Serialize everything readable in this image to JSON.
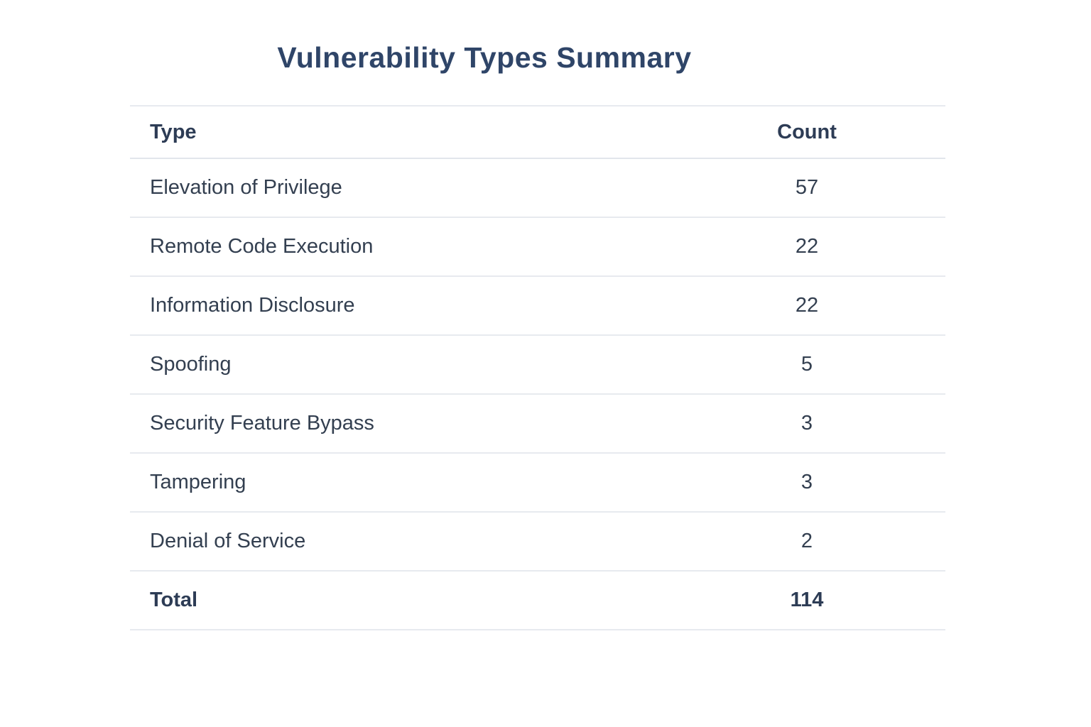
{
  "title": "Vulnerability Types Summary",
  "table": {
    "headers": {
      "type": "Type",
      "count": "Count"
    },
    "rows": [
      {
        "type": "Elevation of Privilege",
        "count": "57"
      },
      {
        "type": "Remote Code Execution",
        "count": "22"
      },
      {
        "type": "Information Disclosure",
        "count": "22"
      },
      {
        "type": "Spoofing",
        "count": "5"
      },
      {
        "type": "Security Feature Bypass",
        "count": "3"
      },
      {
        "type": "Tampering",
        "count": "3"
      },
      {
        "type": "Denial of Service",
        "count": "2"
      }
    ],
    "total_row": {
      "label": "Total",
      "count": "114"
    }
  },
  "colors": {
    "title_text": "#2f4568",
    "header_text": "#2d3c55",
    "body_text": "#333f50",
    "divider": "#e7eaef",
    "background": "#ffffff"
  },
  "chart_data": {
    "type": "table",
    "title": "Vulnerability Types Summary",
    "columns": [
      "Type",
      "Count"
    ],
    "categories": [
      "Elevation of Privilege",
      "Remote Code Execution",
      "Information Disclosure",
      "Spoofing",
      "Security Feature Bypass",
      "Tampering",
      "Denial of Service"
    ],
    "values": [
      57,
      22,
      22,
      5,
      3,
      3,
      2
    ],
    "total": 114
  }
}
